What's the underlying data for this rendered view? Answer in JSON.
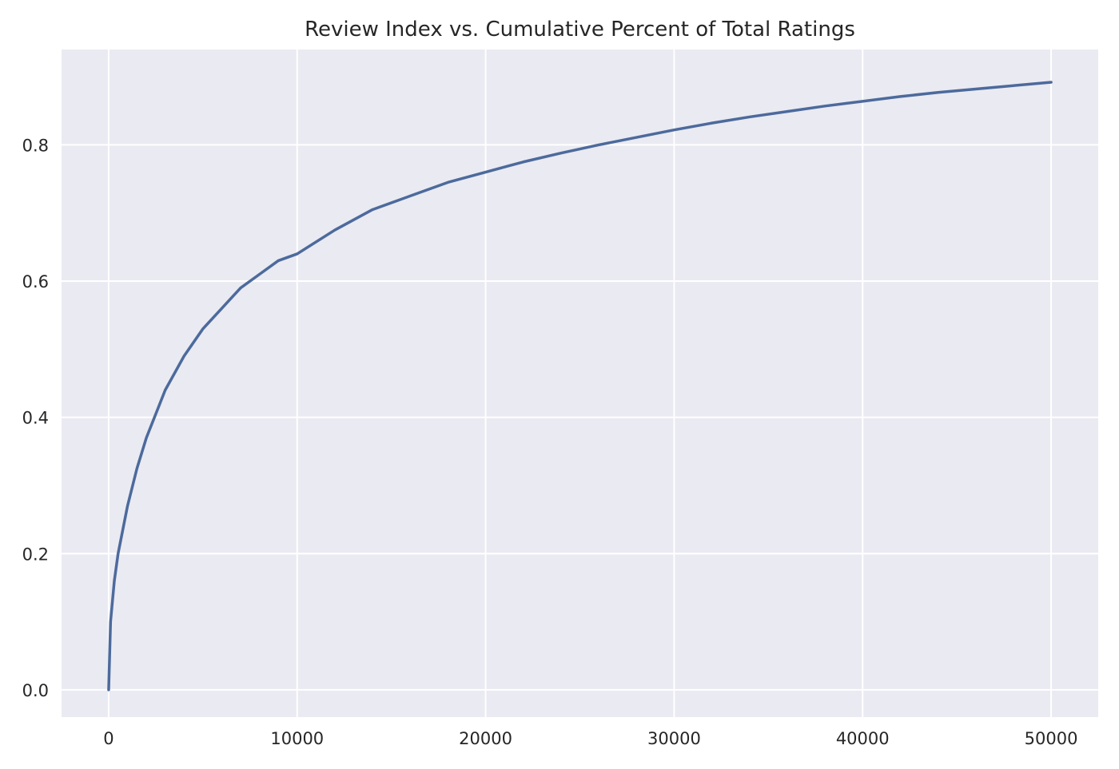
{
  "chart_data": {
    "type": "line",
    "title": "Review Index vs. Cumulative Percent of Total Ratings",
    "xlabel": "",
    "ylabel": "",
    "xlim": [
      -2500,
      52500
    ],
    "ylim": [
      -0.04,
      0.94
    ],
    "grid": true,
    "x_ticks": [
      0,
      10000,
      20000,
      30000,
      40000,
      50000
    ],
    "x_tick_labels": [
      "0",
      "10000",
      "20000",
      "30000",
      "40000",
      "50000"
    ],
    "y_ticks": [
      0.0,
      0.2,
      0.4,
      0.6,
      0.8
    ],
    "y_tick_labels": [
      "0.0",
      "0.2",
      "0.4",
      "0.6",
      "0.8"
    ],
    "series": [
      {
        "color": "#4c6a9c",
        "x": [
          0,
          100,
          300,
          500,
          1000,
          1500,
          2000,
          3000,
          4000,
          5000,
          6000,
          7000,
          8000,
          9000,
          10000,
          12000,
          14000,
          16000,
          18000,
          20000,
          22000,
          24000,
          26000,
          28000,
          30000,
          32000,
          34000,
          36000,
          38000,
          40000,
          42000,
          44000,
          46000,
          48000,
          50000
        ],
        "y": [
          0.0,
          0.1,
          0.16,
          0.2,
          0.27,
          0.325,
          0.37,
          0.44,
          0.49,
          0.53,
          0.56,
          0.59,
          0.61,
          0.63,
          0.64,
          0.675,
          0.705,
          0.725,
          0.745,
          0.76,
          0.775,
          0.788,
          0.8,
          0.811,
          0.822,
          0.832,
          0.841,
          0.849,
          0.857,
          0.864,
          0.871,
          0.877,
          0.882,
          0.887,
          0.892
        ]
      }
    ]
  }
}
